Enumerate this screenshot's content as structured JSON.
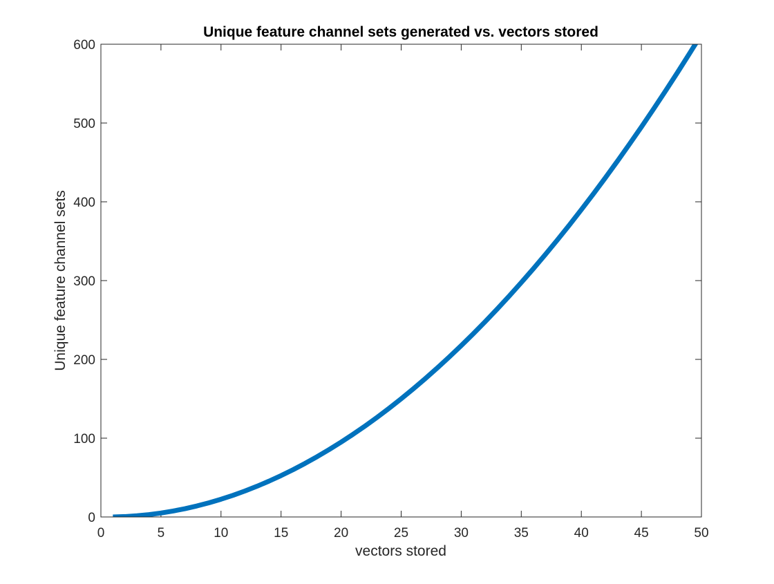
{
  "chart_data": {
    "type": "line",
    "title": "Unique feature channel sets generated vs. vectors stored",
    "xlabel": "vectors stored",
    "ylabel": "Unique feature channel sets",
    "xlim": [
      0,
      50
    ],
    "ylim": [
      0,
      600
    ],
    "xticks": [
      0,
      5,
      10,
      15,
      20,
      25,
      30,
      35,
      40,
      45,
      50
    ],
    "yticks": [
      0,
      100,
      200,
      300,
      400,
      500,
      600
    ],
    "xtick_labels": [
      "0",
      "5",
      "10",
      "15",
      "20",
      "25",
      "30",
      "35",
      "40",
      "45",
      "50"
    ],
    "ytick_labels": [
      "0",
      "100",
      "200",
      "300",
      "400",
      "500",
      "600"
    ],
    "grid": false,
    "box": true,
    "line_color": "#0072BD",
    "series": [
      {
        "x": [
          1,
          2,
          3,
          4,
          5,
          6,
          7,
          8,
          9,
          10,
          11,
          12,
          13,
          14,
          15,
          16,
          17,
          18,
          19,
          20,
          21,
          22,
          23,
          24,
          25,
          26,
          27,
          28,
          29,
          30,
          31,
          32,
          33,
          34,
          35,
          36,
          37,
          38,
          39,
          40,
          41,
          42,
          43,
          44,
          45,
          46,
          47,
          48,
          49,
          50
        ],
        "values": [
          0,
          0.5,
          1.5,
          3,
          5,
          7.5,
          10.5,
          14,
          18,
          22.5,
          27.5,
          33,
          39,
          45.5,
          52.5,
          60,
          68,
          76.5,
          85.5,
          95,
          105,
          115.5,
          126.5,
          138,
          150,
          162.5,
          175.5,
          189,
          203,
          217.5,
          232.5,
          248,
          264,
          280.5,
          297.5,
          315,
          333,
          351.5,
          370.5,
          390,
          410,
          430.5,
          451.5,
          473,
          495,
          517.5,
          540.5,
          564,
          588,
          612.5
        ]
      }
    ]
  }
}
